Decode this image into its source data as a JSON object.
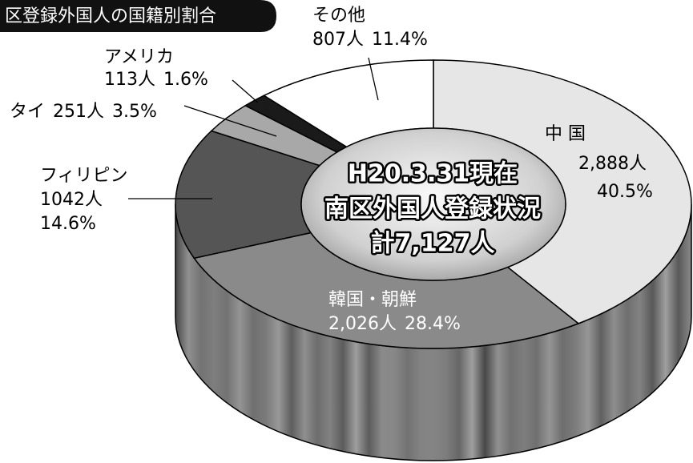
{
  "chart_data": {
    "type": "pie",
    "title": "区登録外国人の国籍別割合",
    "annotations": [
      "H20.3.31現在",
      "南区外国人登録状況",
      "計7,127人"
    ],
    "categories": [
      "中 国",
      "韓国・朝鮮",
      "フィリピン",
      "タイ",
      "アメリカ",
      "その他"
    ],
    "values": [
      40.5,
      28.4,
      14.6,
      3.5,
      1.6,
      11.4
    ],
    "value_labels": [
      "40.5%",
      "28.4%",
      "14.6%",
      "3.5%",
      "1.6%",
      "11.4%"
    ],
    "counts": [
      2888,
      2026,
      1042,
      251,
      113,
      807
    ],
    "count_labels": [
      "2,888人",
      "2,026人",
      "1042人",
      "251人",
      "113人",
      "807人"
    ],
    "colors": [
      "#e6e6e6",
      "#8a8a8a",
      "#555555",
      "#a8a8a8",
      "#1a1a1a",
      "#ffffff"
    ]
  }
}
